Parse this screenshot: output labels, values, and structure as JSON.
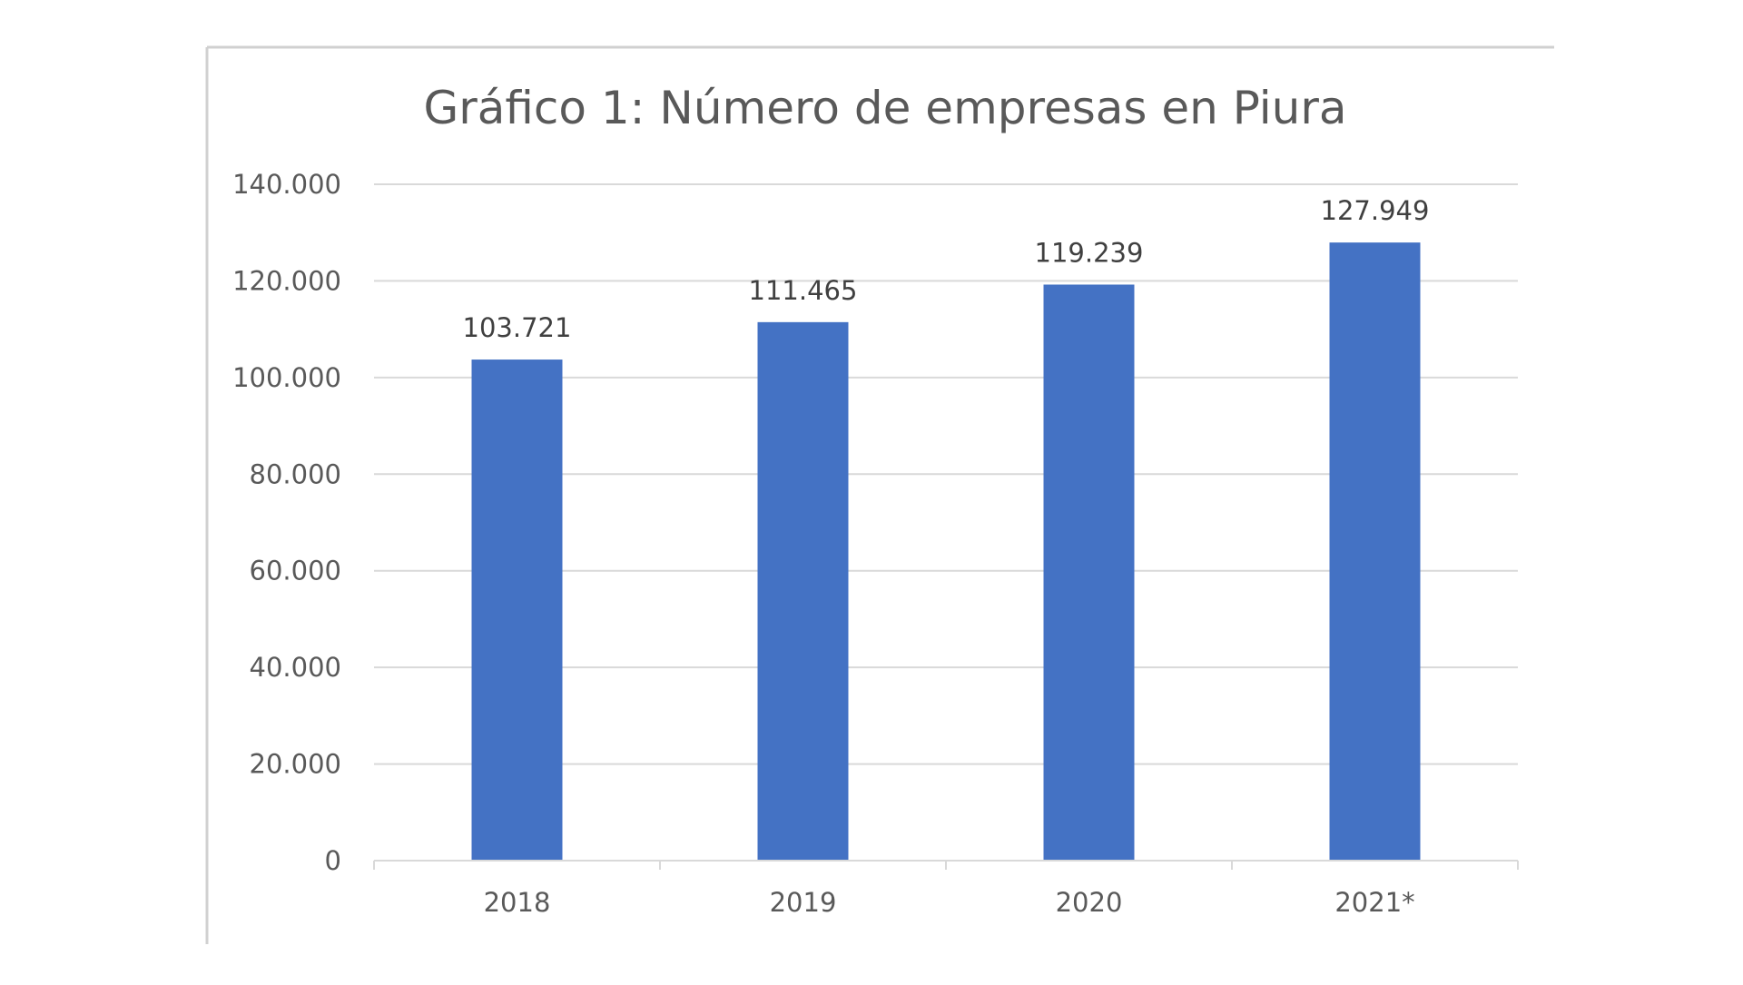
{
  "chart_data": {
    "type": "bar",
    "title": "Gráfico 1: Número de empresas en Piura",
    "xlabel": "",
    "ylabel": "",
    "categories": [
      "2018",
      "2019",
      "2020",
      "2021*"
    ],
    "values": [
      103721,
      111465,
      119239,
      127949
    ],
    "value_labels": [
      "103.721",
      "111.465",
      "119.239",
      "127.949"
    ],
    "ylim": [
      0,
      140000
    ],
    "yticks": [
      0,
      20000,
      40000,
      60000,
      80000,
      100000,
      120000,
      140000
    ],
    "ytick_labels": [
      "0",
      "20.000",
      "40.000",
      "60.000",
      "80.000",
      "100.000",
      "120.000",
      "140.000"
    ],
    "grid": true,
    "legend": "none",
    "bar_color": "#4472C4"
  }
}
